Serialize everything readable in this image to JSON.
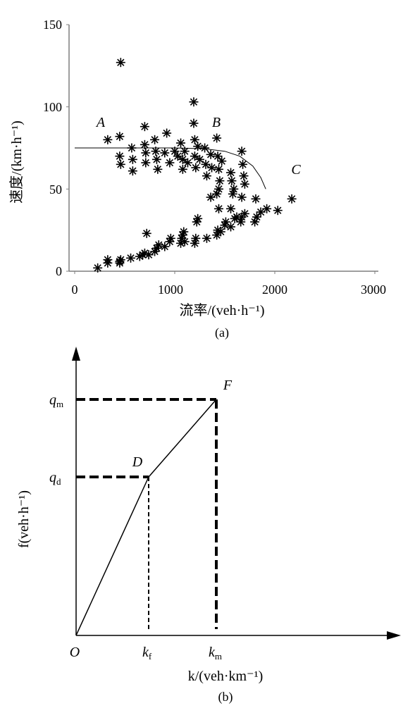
{
  "chart_data": [
    {
      "type": "scatter",
      "xlabel": "流率/(veh·h⁻¹)",
      "ylabel": "速度/(km·h⁻¹)",
      "xlim": [
        0,
        3000
      ],
      "ylim": [
        0,
        150
      ],
      "xticks": [
        "0",
        "1000",
        "2000",
        "3000"
      ],
      "yticks": [
        "0",
        "50",
        "100",
        "150"
      ],
      "caption": "(a)",
      "annotations": [
        "A",
        "B",
        "C"
      ],
      "marker": "*",
      "series": [
        {
          "points": [
            [
              230,
              2
            ],
            [
              330,
              5
            ],
            [
              330,
              7
            ],
            [
              450,
              5
            ],
            [
              450,
              6
            ],
            [
              460,
              7
            ],
            [
              560,
              8
            ],
            [
              650,
              9
            ],
            [
              680,
              10
            ],
            [
              700,
              11
            ],
            [
              740,
              10
            ],
            [
              800,
              12
            ],
            [
              820,
              14
            ],
            [
              840,
              16
            ],
            [
              900,
              15
            ],
            [
              950,
              18
            ],
            [
              960,
              20
            ],
            [
              1060,
              17
            ],
            [
              1070,
              20
            ],
            [
              1080,
              22
            ],
            [
              1090,
              24
            ],
            [
              1100,
              18
            ],
            [
              1200,
              17
            ],
            [
              1210,
              20
            ],
            [
              1230,
              32
            ],
            [
              1320,
              20
            ],
            [
              1420,
              22
            ],
            [
              1430,
              25
            ],
            [
              1460,
              24
            ],
            [
              1500,
              28
            ],
            [
              1510,
              30
            ],
            [
              1560,
              27
            ],
            [
              1600,
              32
            ],
            [
              1620,
              33
            ],
            [
              1660,
              30
            ],
            [
              1670,
              33
            ],
            [
              1700,
              35
            ],
            [
              1800,
              30
            ],
            [
              1820,
              33
            ],
            [
              1860,
              36
            ],
            [
              1920,
              38
            ],
            [
              2030,
              37
            ],
            [
              2170,
              44
            ],
            [
              720,
              23
            ],
            [
              1220,
              30
            ],
            [
              1360,
              45
            ],
            [
              1420,
              47
            ],
            [
              1440,
              38
            ],
            [
              1440,
              50
            ],
            [
              1560,
              38
            ],
            [
              1580,
              47
            ],
            [
              1670,
              45
            ],
            [
              1810,
              44
            ],
            [
              330,
              80
            ],
            [
              450,
              82
            ],
            [
              460,
              127
            ],
            [
              450,
              70
            ],
            [
              460,
              65
            ],
            [
              570,
              75
            ],
            [
              580,
              68
            ],
            [
              580,
              61
            ],
            [
              700,
              88
            ],
            [
              700,
              77
            ],
            [
              710,
              72
            ],
            [
              710,
              66
            ],
            [
              800,
              80
            ],
            [
              810,
              73
            ],
            [
              820,
              68
            ],
            [
              830,
              62
            ],
            [
              900,
              72
            ],
            [
              920,
              84
            ],
            [
              950,
              66
            ],
            [
              1000,
              73
            ],
            [
              1030,
              70
            ],
            [
              1060,
              78
            ],
            [
              1080,
              68
            ],
            [
              1080,
              62
            ],
            [
              1100,
              73
            ],
            [
              1130,
              66
            ],
            [
              1190,
              103
            ],
            [
              1190,
              90
            ],
            [
              1200,
              80
            ],
            [
              1200,
              70
            ],
            [
              1210,
              63
            ],
            [
              1230,
              76
            ],
            [
              1250,
              68
            ],
            [
              1300,
              75
            ],
            [
              1310,
              65
            ],
            [
              1320,
              58
            ],
            [
              1360,
              71
            ],
            [
              1370,
              63
            ],
            [
              1420,
              81
            ],
            [
              1430,
              70
            ],
            [
              1440,
              62
            ],
            [
              1450,
              55
            ],
            [
              1470,
              67
            ],
            [
              1560,
              60
            ],
            [
              1570,
              55
            ],
            [
              1590,
              50
            ],
            [
              1670,
              73
            ],
            [
              1680,
              65
            ],
            [
              1690,
              58
            ],
            [
              1700,
              53
            ]
          ]
        },
        {
          "type": "line",
          "points": [
            [
              0,
              75
            ],
            [
              500,
              75
            ],
            [
              1000,
              75
            ],
            [
              1300,
              74.5
            ],
            [
              1500,
              73
            ],
            [
              1650,
              70
            ],
            [
              1780,
              64
            ],
            [
              1860,
              57
            ],
            [
              1910,
              50
            ]
          ]
        }
      ]
    },
    {
      "type": "line",
      "xlabel": "k/(veh·km⁻¹)",
      "ylabel": "f(veh·h⁻¹)",
      "caption": "(b)",
      "origin_label": "O",
      "x_tick_labels": [
        {
          "base": "k",
          "sub": "f"
        },
        {
          "base": "k",
          "sub": "m"
        }
      ],
      "y_tick_labels": [
        {
          "base": "q",
          "sub": "d"
        },
        {
          "base": "q",
          "sub": "m"
        }
      ],
      "point_labels": [
        "D",
        "F"
      ]
    }
  ]
}
